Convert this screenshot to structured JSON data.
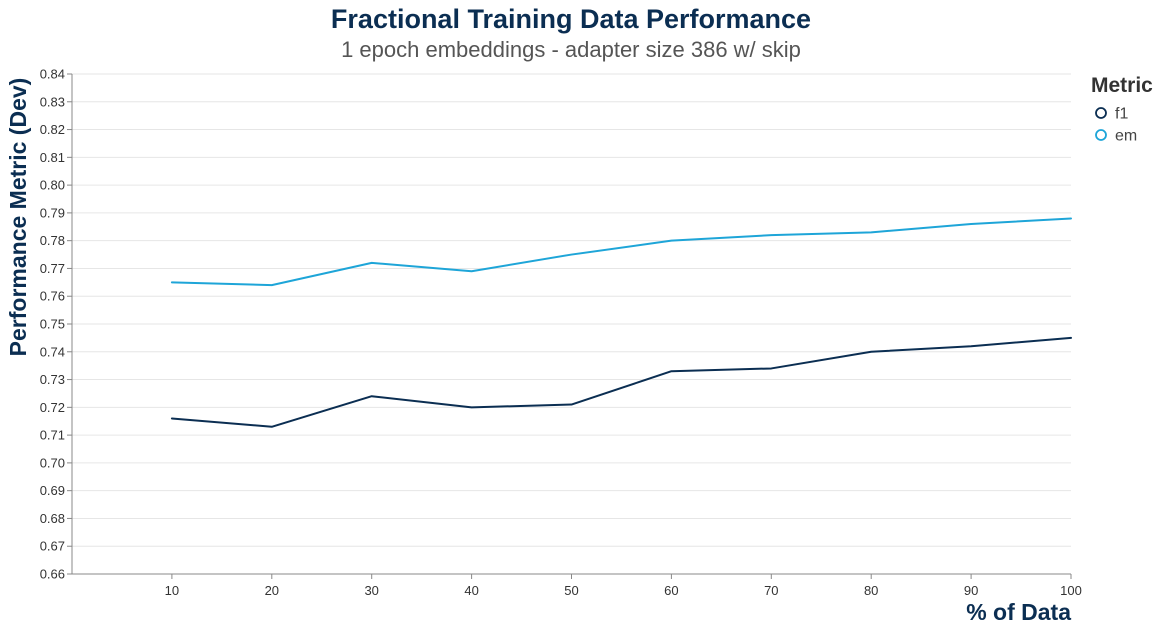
{
  "chart_data": {
    "type": "line",
    "title": "Fractional Training Data Performance",
    "subtitle": "1 epoch embeddings - adapter size 386 w/ skip",
    "xlabel": "% of Data",
    "ylabel": "Performance Metric (Dev)",
    "x": [
      10,
      20,
      30,
      40,
      50,
      60,
      70,
      80,
      90,
      100
    ],
    "xlim": [
      0,
      100
    ],
    "ylim": [
      0.66,
      0.84
    ],
    "y_ticks": [
      "0.66",
      "0.67",
      "0.68",
      "0.69",
      "0.70",
      "0.71",
      "0.72",
      "0.73",
      "0.74",
      "0.75",
      "0.76",
      "0.77",
      "0.78",
      "0.79",
      "0.80",
      "0.81",
      "0.82",
      "0.83",
      "0.84"
    ],
    "x_ticks": [
      "10",
      "20",
      "30",
      "40",
      "50",
      "60",
      "70",
      "80",
      "90",
      "100"
    ],
    "grid": "horizontal",
    "legend": {
      "title": "Metric",
      "position": "top-right"
    },
    "series": [
      {
        "name": "f1",
        "color": "#0b2e52",
        "values": [
          0.716,
          0.713,
          0.724,
          0.72,
          0.721,
          0.733,
          0.734,
          0.74,
          0.742,
          0.745
        ]
      },
      {
        "name": "em",
        "color": "#1ea5d8",
        "values": [
          0.765,
          0.764,
          0.772,
          0.769,
          0.775,
          0.78,
          0.782,
          0.783,
          0.786,
          0.788
        ]
      }
    ]
  }
}
